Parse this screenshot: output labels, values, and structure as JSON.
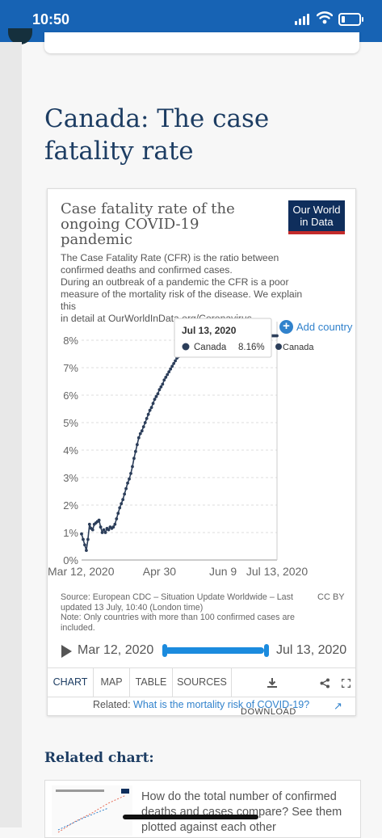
{
  "status_bar": {
    "time": "10:50"
  },
  "page": {
    "heading": "Canada: The case fatality rate"
  },
  "card": {
    "title": "Case fatality rate of the ongoing COVID-19 pandemic",
    "logo": {
      "line1": "Our World",
      "line2": "in Data"
    },
    "subtitle": [
      "The Case Fatality Rate (CFR) is the ratio between",
      "confirmed deaths and confirmed cases.",
      "During an outbreak of a pandemic the CFR is a poor",
      "measure of the mortality risk of the disease. We explain this",
      "in detail at OurWorldInData.org/Coronavirus"
    ],
    "add_country": "Add country",
    "tooltip": {
      "date": "Jul 13, 2020",
      "country": "Canada",
      "value": "8.16%"
    },
    "source": [
      "Source: European CDC – Situation Update Worldwide – Last",
      "updated 13 July, 10:40 (London time)",
      "Note: Only countries with more than 100 confirmed cases are",
      "included."
    ],
    "license": "CC BY",
    "timeline": {
      "start": "Mar 12, 2020",
      "end": "Jul 13, 2020",
      "selection_start_fraction": 0,
      "selection_end_fraction": 1
    },
    "tabs": [
      "CHART",
      "MAP",
      "TABLE",
      "SOURCES"
    ],
    "active_tab": "CHART",
    "download_label": "DOWNLOAD",
    "related": {
      "prefix": "Related:",
      "link": "What is the mortality risk of COVID-19?"
    }
  },
  "related_chart": {
    "heading": "Related chart:",
    "text": "How do the total number of confirmed deaths and cases compare? See them plotted against each other"
  },
  "colors": {
    "status_bar": "#1763b4",
    "heading": "#1d3d63",
    "series": "#2c3e5a",
    "link": "#3182cc",
    "timeline": "#1b8bde",
    "logo_bg": "#0f2e5c",
    "logo_accent": "#c32b2b"
  },
  "icons": [
    "signal-icon",
    "wifi-icon",
    "battery-icon",
    "plus-icon",
    "play-icon",
    "download-icon",
    "share-icon",
    "fullscreen-icon",
    "external-link-icon"
  ],
  "chart_data": {
    "type": "line",
    "title": "Case fatality rate of the ongoing COVID-19 pandemic",
    "ylim": [
      0,
      8.5
    ],
    "y_ticks": [
      "0%",
      "1%",
      "2%",
      "3%",
      "4%",
      "5%",
      "6%",
      "7%",
      "8%"
    ],
    "y_tick_values": [
      0,
      1,
      2,
      3,
      4,
      5,
      6,
      7,
      8
    ],
    "x_ticks": [
      "Mar 12, 2020",
      "Apr 30",
      "Jun 9",
      "Jul 13, 2020"
    ],
    "x_tick_dates": [
      "2020-03-12",
      "2020-04-30",
      "2020-06-09",
      "2020-07-13"
    ],
    "series": [
      {
        "name": "Canada",
        "x": [
          "2020-03-12",
          "2020-03-13",
          "2020-03-14",
          "2020-03-15",
          "2020-03-16",
          "2020-03-17",
          "2020-03-18",
          "2020-03-19",
          "2020-03-20",
          "2020-03-21",
          "2020-03-22",
          "2020-03-23",
          "2020-03-24",
          "2020-03-25",
          "2020-03-26",
          "2020-03-27",
          "2020-03-28",
          "2020-03-29",
          "2020-03-30",
          "2020-03-31",
          "2020-04-01",
          "2020-04-02",
          "2020-04-03",
          "2020-04-04",
          "2020-04-05",
          "2020-04-06",
          "2020-04-07",
          "2020-04-08",
          "2020-04-09",
          "2020-04-10",
          "2020-04-11",
          "2020-04-12",
          "2020-04-13",
          "2020-04-14",
          "2020-04-15",
          "2020-04-16",
          "2020-04-17",
          "2020-04-18",
          "2020-04-19",
          "2020-04-20",
          "2020-04-21",
          "2020-04-22",
          "2020-04-23",
          "2020-04-24",
          "2020-04-25",
          "2020-04-26",
          "2020-04-27",
          "2020-04-28",
          "2020-04-29",
          "2020-04-30",
          "2020-05-01",
          "2020-05-02",
          "2020-05-03",
          "2020-05-04",
          "2020-05-05",
          "2020-05-06",
          "2020-05-07",
          "2020-05-08",
          "2020-05-09",
          "2020-05-10",
          "2020-05-11",
          "2020-05-12",
          "2020-05-13",
          "2020-05-14",
          "2020-05-15",
          "2020-05-16",
          "2020-05-17",
          "2020-05-18",
          "2020-05-19",
          "2020-05-20",
          "2020-05-21",
          "2020-05-22",
          "2020-05-23",
          "2020-05-24",
          "2020-05-25",
          "2020-05-26",
          "2020-05-27",
          "2020-05-28",
          "2020-05-29",
          "2020-05-30",
          "2020-05-31",
          "2020-06-01",
          "2020-06-02",
          "2020-06-03",
          "2020-06-04",
          "2020-06-05",
          "2020-06-06",
          "2020-06-07",
          "2020-06-08",
          "2020-06-09",
          "2020-06-10",
          "2020-06-11",
          "2020-06-12",
          "2020-06-13",
          "2020-06-14",
          "2020-06-15",
          "2020-06-16",
          "2020-06-17",
          "2020-06-18",
          "2020-06-19",
          "2020-06-20",
          "2020-06-21",
          "2020-06-22",
          "2020-06-23",
          "2020-06-24",
          "2020-06-25",
          "2020-06-26",
          "2020-06-27",
          "2020-06-28",
          "2020-06-29",
          "2020-06-30",
          "2020-07-01",
          "2020-07-02",
          "2020-07-03",
          "2020-07-04",
          "2020-07-05",
          "2020-07-06",
          "2020-07-07",
          "2020-07-08",
          "2020-07-09",
          "2020-07-10",
          "2020-07-11",
          "2020-07-12",
          "2020-07-13"
        ],
        "y": [
          0.95,
          0.75,
          0.55,
          0.35,
          0.75,
          1.3,
          1.15,
          1.1,
          1.3,
          1.35,
          1.4,
          1.45,
          1.2,
          1.0,
          1.1,
          1.0,
          1.15,
          1.1,
          1.2,
          1.15,
          1.2,
          1.3,
          1.5,
          1.7,
          1.9,
          2.05,
          2.2,
          2.4,
          2.6,
          2.8,
          2.95,
          3.15,
          3.4,
          3.7,
          3.95,
          4.2,
          4.45,
          4.6,
          4.7,
          4.85,
          5.0,
          5.15,
          5.3,
          5.45,
          5.55,
          5.7,
          5.85,
          5.95,
          6.05,
          6.2,
          6.3,
          6.4,
          6.55,
          6.65,
          6.75,
          6.85,
          6.95,
          7.05,
          7.15,
          7.25,
          7.35,
          7.4,
          7.45,
          7.5,
          7.52,
          7.55,
          7.58,
          7.6,
          7.62,
          7.64,
          7.66,
          7.68,
          7.7,
          7.72,
          7.74,
          7.76,
          7.78,
          7.8,
          7.82,
          7.84,
          7.86,
          7.88,
          7.9,
          7.92,
          7.94,
          7.96,
          7.98,
          8.0,
          8.01,
          8.02,
          8.03,
          8.04,
          8.05,
          8.06,
          8.07,
          8.08,
          8.09,
          8.1,
          8.1,
          8.11,
          8.11,
          8.12,
          8.12,
          8.13,
          8.13,
          8.13,
          8.14,
          8.14,
          8.14,
          8.15,
          8.15,
          8.15,
          8.15,
          8.15,
          8.16,
          8.16,
          8.16,
          8.16,
          8.16,
          8.16,
          8.16,
          8.16,
          8.16,
          8.16
        ]
      }
    ]
  }
}
